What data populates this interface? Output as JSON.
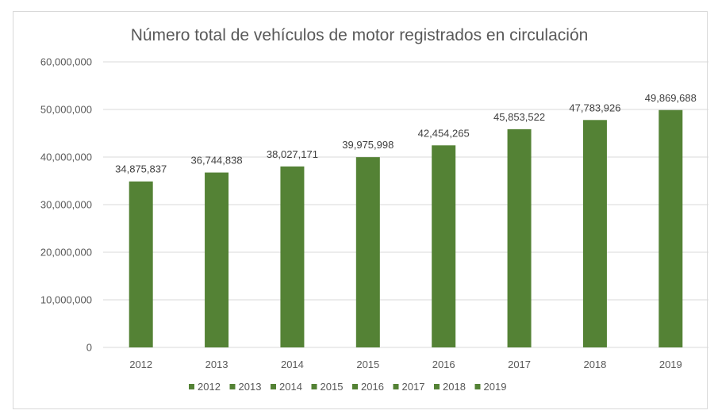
{
  "chart_data": {
    "type": "bar",
    "title": "Número total de vehículos de motor registrados en circulación",
    "xlabel": "",
    "ylabel": "",
    "categories": [
      "2012",
      "2013",
      "2014",
      "2015",
      "2016",
      "2017",
      "2018",
      "2019"
    ],
    "values": [
      34875837,
      36744838,
      38027171,
      39975998,
      42454265,
      45853522,
      47783926,
      49869688
    ],
    "value_labels": [
      "34,875,837",
      "36,744,838",
      "38,027,171",
      "39,975,998",
      "42,454,265",
      "45,853,522",
      "47,783,926",
      "49,869,688"
    ],
    "ylim": [
      0,
      60000000
    ],
    "y_ticks": [
      0,
      10000000,
      20000000,
      30000000,
      40000000,
      50000000,
      60000000
    ],
    "y_tick_labels": [
      "0",
      "10,000,000",
      "20,000,000",
      "30,000,000",
      "40,000,000",
      "50,000,000",
      "60,000,000"
    ],
    "legend": [
      "2012",
      "2013",
      "2014",
      "2015",
      "2016",
      "2017",
      "2018",
      "2019"
    ],
    "legend_position": "bottom",
    "grid": true,
    "bar_color": "#548235",
    "grid_color": "#d9d9d9"
  }
}
